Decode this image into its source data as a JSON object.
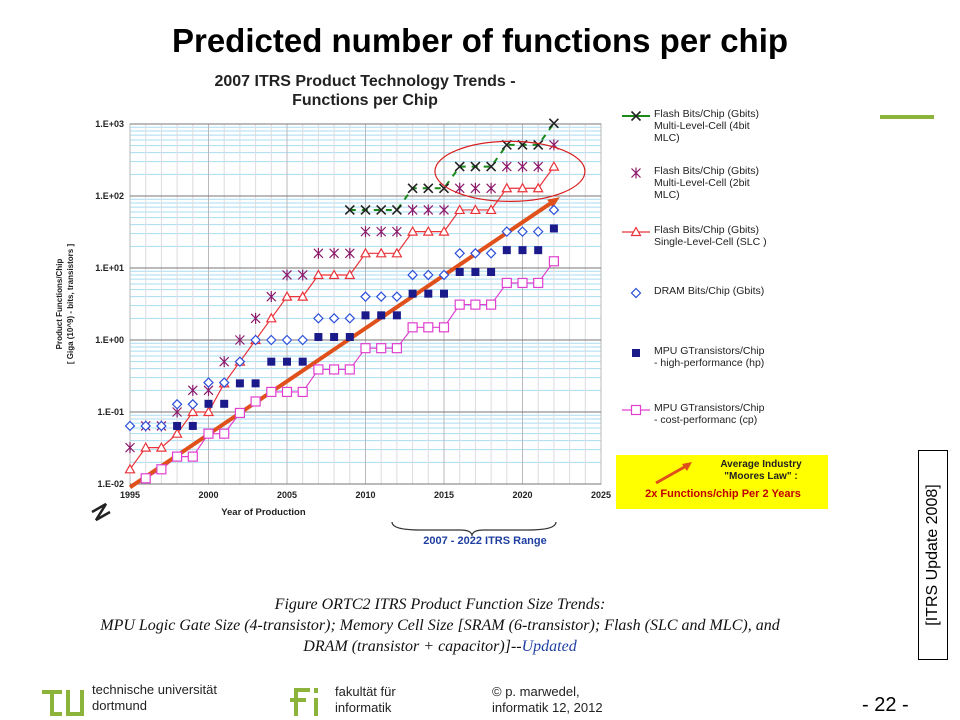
{
  "slide": {
    "title": "Predicted number of functions per chip",
    "chart_heading_line1": "2007 ITRS Product Technology Trends -",
    "chart_heading_line2": "Functions per Chip",
    "range_label": "2007 - 2022 ITRS Range",
    "side_note": "[ITRS Update 2008]",
    "moore_line1": "Average Industry",
    "moore_line2": "\"Moores Law\" :",
    "moore_line3": "2x Functions/chip Per 2 Years",
    "caption_line1": "Figure ORTC2        ITRS Product Function Size Trends:",
    "caption_line2": "MPU Logic Gate Size (4-transistor); Memory Cell Size [SRAM (6-transistor); Flash (SLC and MLC), and",
    "caption_line3": "DRAM (transistor + capacitor)]--",
    "caption_updated": "Updated",
    "accent_color": "#8db43a"
  },
  "footer": {
    "university": "technische universität\ndortmund",
    "faculty": "fakultät für\ninformatik",
    "author": "© p. marwedel,\ninformatik 12,  2012",
    "page": "-  22 -"
  },
  "chart_data": {
    "type": "scatter",
    "xlabel": "Year of Production",
    "ylabel": "Product Functions/Chip\n[ Giga (10^9) - bits, transistors ]",
    "xlim": [
      1995,
      2025
    ],
    "ylim": [
      0.01,
      1000
    ],
    "y_scale": "log",
    "x_ticks": [
      "1995",
      "2000",
      "2005",
      "2010",
      "2015",
      "2020",
      "2025"
    ],
    "y_ticks": [
      "1.E-02",
      "1.E-01",
      "1.E+00",
      "1.E+01",
      "1.E+02",
      "1.E+03"
    ],
    "grid": true,
    "legend_position": "right",
    "series": [
      {
        "name": "Flash Bits/Chip (Gbits)\nMulti-Level-Cell (4bit\nMLC)",
        "marker": "x",
        "color": "#1a8a1a",
        "line": true,
        "x": [
          2009,
          2010,
          2011,
          2012,
          2013,
          2014,
          2015,
          2016,
          2017,
          2018,
          2019,
          2020,
          2021,
          2022
        ],
        "y": [
          64,
          64,
          64,
          64,
          128,
          128,
          128,
          256,
          256,
          256,
          512,
          512,
          512,
          1024
        ]
      },
      {
        "name": "Flash Bits/Chip (Gbits)\nMulti-Level-Cell (2bit\nMLC)",
        "marker": "asterisk",
        "color": "#8b1a6b",
        "line": false,
        "x": [
          1995,
          1996,
          1997,
          1998,
          1999,
          2000,
          2001,
          2002,
          2003,
          2004,
          2005,
          2006,
          2007,
          2008,
          2009,
          2010,
          2011,
          2012,
          2013,
          2014,
          2015,
          2016,
          2017,
          2018,
          2019,
          2020,
          2021,
          2022
        ],
        "y": [
          0.032,
          0.064,
          0.064,
          0.1,
          0.2,
          0.2,
          0.5,
          1,
          2,
          4,
          8,
          8,
          16,
          16,
          16,
          32,
          32,
          32,
          64,
          64,
          64,
          128,
          128,
          128,
          256,
          256,
          256,
          512
        ]
      },
      {
        "name": "Flash Bits/Chip (Gbits)\nSingle-Level-Cell (SLC )",
        "marker": "triangle",
        "color": "#e8333a",
        "line": true,
        "x": [
          1995,
          1996,
          1997,
          1998,
          1999,
          2000,
          2001,
          2002,
          2003,
          2004,
          2005,
          2006,
          2007,
          2008,
          2009,
          2010,
          2011,
          2012,
          2013,
          2014,
          2015,
          2016,
          2017,
          2018,
          2019,
          2020,
          2021,
          2022
        ],
        "y": [
          0.016,
          0.032,
          0.032,
          0.05,
          0.1,
          0.1,
          0.25,
          0.5,
          1,
          2,
          4,
          4,
          8,
          8,
          8,
          16,
          16,
          16,
          32,
          32,
          32,
          64,
          64,
          64,
          128,
          128,
          128,
          256
        ]
      },
      {
        "name": "DRAM Bits/Chip (Gbits)",
        "marker": "diamond",
        "color": "#2b4fd8",
        "line": false,
        "x": [
          1995,
          1996,
          1997,
          1998,
          1999,
          2000,
          2001,
          2002,
          2003,
          2004,
          2005,
          2006,
          2007,
          2008,
          2009,
          2010,
          2011,
          2012,
          2013,
          2014,
          2015,
          2016,
          2017,
          2018,
          2019,
          2020,
          2021,
          2022
        ],
        "y": [
          0.064,
          0.064,
          0.064,
          0.128,
          0.128,
          0.256,
          0.256,
          0.5,
          1,
          1,
          1,
          1,
          2,
          2,
          2,
          4,
          4,
          4,
          8,
          8,
          8,
          16,
          16,
          16,
          32,
          32,
          32,
          64
        ]
      },
      {
        "name": "MPU GTransistors/Chip\n- high-performance (hp)",
        "marker": "square-filled",
        "color": "#1a1a8a",
        "line": false,
        "x": [
          1998,
          1999,
          2000,
          2001,
          2002,
          2003,
          2004,
          2005,
          2006,
          2007,
          2008,
          2009,
          2010,
          2011,
          2012,
          2013,
          2014,
          2015,
          2016,
          2017,
          2018,
          2019,
          2020,
          2021,
          2022
        ],
        "y": [
          0.064,
          0.064,
          0.13,
          0.13,
          0.25,
          0.25,
          0.5,
          0.5,
          0.5,
          1.1,
          1.1,
          1.1,
          2.2,
          2.2,
          2.2,
          4.4,
          4.4,
          4.4,
          8.8,
          8.8,
          8.8,
          17.7,
          17.7,
          17.7,
          35.4
        ]
      },
      {
        "name": "MPU GTransistors/Chip\n- cost-performanc (cp)",
        "marker": "square",
        "color": "#e040d0",
        "line": true,
        "x": [
          1996,
          1997,
          1998,
          1999,
          2000,
          2001,
          2002,
          2003,
          2004,
          2005,
          2006,
          2007,
          2008,
          2009,
          2010,
          2011,
          2012,
          2013,
          2014,
          2015,
          2016,
          2017,
          2018,
          2019,
          2020,
          2021,
          2022
        ],
        "y": [
          0.012,
          0.016,
          0.024,
          0.024,
          0.05,
          0.05,
          0.097,
          0.14,
          0.19,
          0.19,
          0.19,
          0.39,
          0.39,
          0.39,
          0.77,
          0.77,
          0.77,
          1.5,
          1.5,
          1.5,
          3.1,
          3.1,
          3.1,
          6.2,
          6.2,
          6.2,
          12.4
        ]
      }
    ],
    "trend_line": {
      "label": "Average Industry \"Moores Law\" : 2x Functions/chip Per 2 Years",
      "color": "#e0501a",
      "x": [
        1995,
        2022
      ],
      "y": [
        0.009,
        85
      ]
    }
  }
}
